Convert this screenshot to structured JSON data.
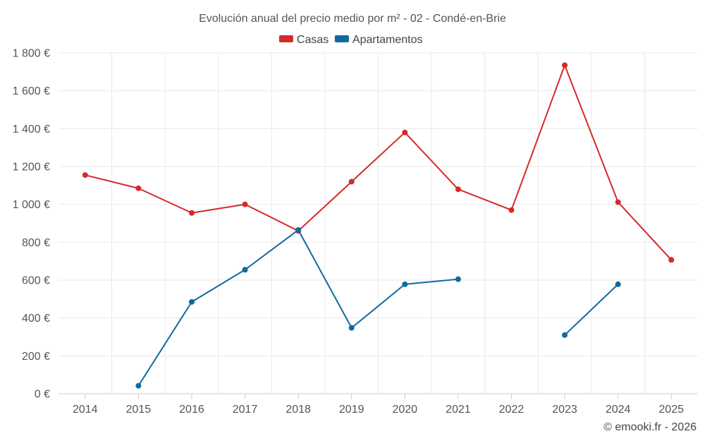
{
  "chart_data": {
    "type": "line",
    "title": "Evolución anual del precio medio por m² - 02 - Condé-en-Brie",
    "categories": [
      "2014",
      "2015",
      "2016",
      "2017",
      "2018",
      "2019",
      "2020",
      "2021",
      "2022",
      "2023",
      "2024",
      "2025"
    ],
    "series": [
      {
        "name": "Casas",
        "color": "#d42a2a",
        "values": [
          1155,
          1085,
          955,
          1000,
          860,
          1120,
          1380,
          1080,
          970,
          1735,
          1012,
          707
        ]
      },
      {
        "name": "Apartamentos",
        "color": "#0f6aa0",
        "values": [
          null,
          42,
          485,
          655,
          865,
          348,
          578,
          605,
          null,
          310,
          578,
          null
        ]
      }
    ],
    "ylim": [
      0,
      1800
    ],
    "yticks": [
      0,
      200,
      400,
      600,
      800,
      1000,
      1200,
      1400,
      1600,
      1800
    ],
    "ytick_labels": [
      "0 €",
      "200 €",
      "400 €",
      "600 €",
      "800 €",
      "1 000 €",
      "1 200 €",
      "1 400 €",
      "1 600 €",
      "1 800 €"
    ],
    "grid": true,
    "legend_position": "top-center",
    "xlabel": "",
    "ylabel": ""
  },
  "credit": "© emooki.fr - 2026"
}
